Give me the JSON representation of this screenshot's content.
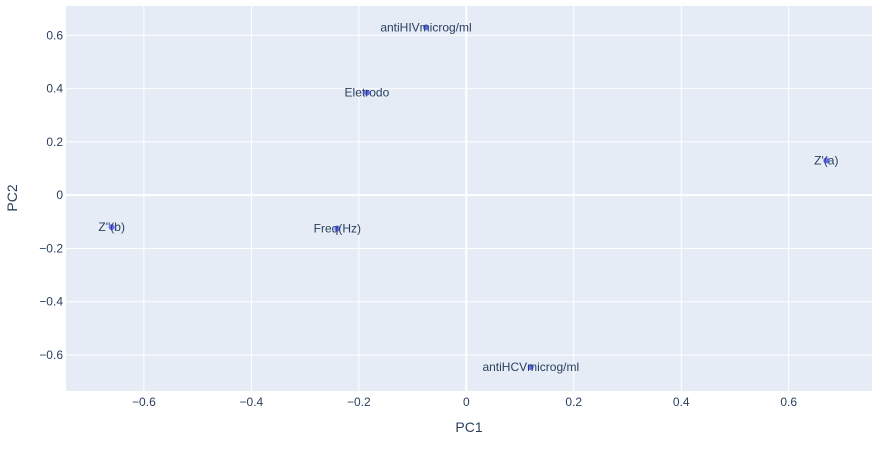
{
  "chart_data": {
    "type": "scatter",
    "title": "",
    "xlabel": "PC1",
    "ylabel": "PC2",
    "xlim": [
      -0.745,
      0.755
    ],
    "ylim": [
      -0.735,
      0.71
    ],
    "xticks": [
      -0.6,
      -0.4,
      -0.2,
      0,
      0.2,
      0.4,
      0.6
    ],
    "yticks": [
      -0.6,
      -0.4,
      -0.2,
      0,
      0.2,
      0.4,
      0.6
    ],
    "xtick_labels": [
      "−0.6",
      "−0.4",
      "−0.2",
      "0",
      "0.2",
      "0.4",
      "0.6"
    ],
    "ytick_labels": [
      "−0.6",
      "−0.4",
      "−0.2",
      "0",
      "0.2",
      "0.4",
      "0.6"
    ],
    "grid": true,
    "marker_color": "#636efa",
    "plot_bg": "#e5ecf6",
    "grid_color": "#ffffff",
    "text_color": "#2a3f5f",
    "points": [
      {
        "label": "antiHIVmicrog/ml",
        "x": -0.075,
        "y": 0.63
      },
      {
        "label": "Eletrodo",
        "x": -0.185,
        "y": 0.385
      },
      {
        "label": "Z'(a)",
        "x": 0.67,
        "y": 0.13
      },
      {
        "label": "Z''(b)",
        "x": -0.66,
        "y": -0.12
      },
      {
        "label": "Freq(Hz)",
        "x": -0.24,
        "y": -0.125
      },
      {
        "label": "antiHCVmicrog/ml",
        "x": 0.12,
        "y": -0.645
      }
    ]
  }
}
